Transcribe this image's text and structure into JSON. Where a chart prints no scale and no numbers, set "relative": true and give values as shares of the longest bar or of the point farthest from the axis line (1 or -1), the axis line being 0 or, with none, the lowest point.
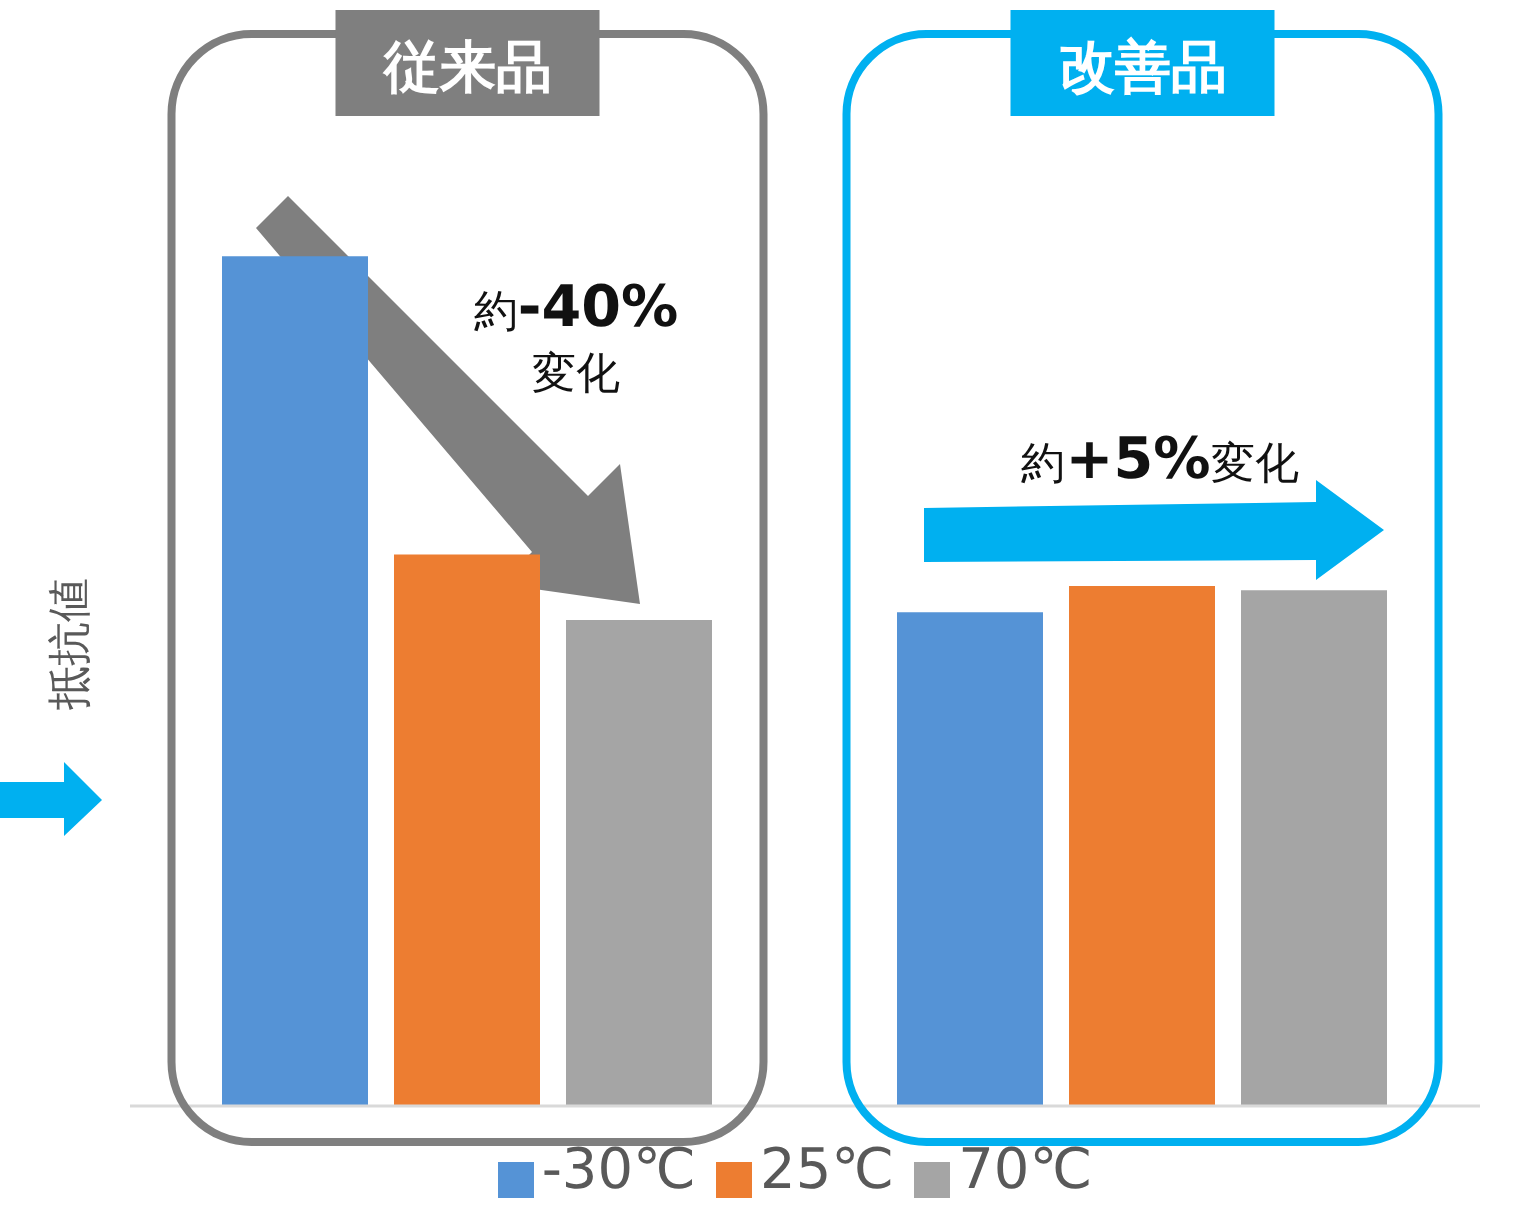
{
  "chart_data": {
    "type": "bar",
    "relative": true,
    "ylabel": "抵抗値",
    "categories": [
      "従来品",
      "改善品"
    ],
    "series": [
      {
        "name": "-30℃",
        "color": "#5593d6",
        "values": [
          1,
          0.581
        ]
      },
      {
        "name": "25℃",
        "color": "#ed7d31",
        "values": [
          0.649,
          0.612
        ]
      },
      {
        "name": "70℃",
        "color": "#a5a5a5",
        "values": [
          0.572,
          0.607
        ]
      }
    ],
    "annotations": [
      "約-40%変化",
      "約+5%変化"
    ],
    "legend": "bottom"
  }
}
